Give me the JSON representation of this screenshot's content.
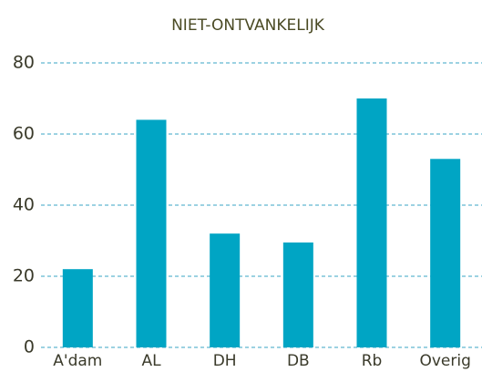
{
  "chart_data": {
    "type": "bar",
    "title": "NIET-ONTVANKELIJK",
    "categories": [
      "A'dam",
      "AL",
      "DH",
      "DB",
      "Rb",
      "Overig"
    ],
    "values": [
      22,
      64,
      32,
      29.5,
      70,
      53
    ],
    "color": "#00a5c4",
    "grid_color": "#3aa6c5",
    "ylim": [
      0,
      80
    ],
    "yticks": [
      0,
      20,
      40,
      60,
      80
    ],
    "grid": true
  }
}
